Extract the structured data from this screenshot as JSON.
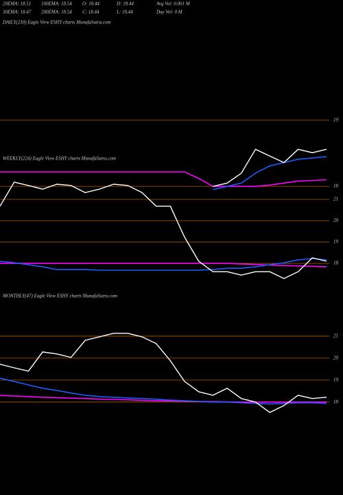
{
  "header": {
    "line1": [
      "20EMA: 18.51",
      "100EMA: 18.54",
      "O: 18.44",
      "H: 18.44",
      "Avg Vol: 0.001 M"
    ],
    "line2": [
      "30EMA: 18.47",
      "200EMA: 18.54",
      "C: 18.44",
      "L: 18.44",
      "Day Vol: 0  M"
    ]
  },
  "chart_data": [
    {
      "type": "line",
      "label": "DAILY(230) Eagle  View  ESHY charts MunafaSutra.com",
      "ylim": [
        17.7,
        20.35
      ],
      "yticks": [
        19,
        18
      ],
      "grid": true,
      "series": [
        {
          "color": "#ff00ff",
          "values": [
            18.22,
            18.22,
            18.22,
            18.22,
            18.22,
            18.22,
            18.22,
            18.22,
            18.22,
            18.22,
            18.22,
            18.22,
            18.22,
            18.22,
            18.12,
            18.0,
            18.0,
            18.0,
            18.0,
            18.02,
            18.05,
            18.08,
            18.09,
            18.1
          ]
        },
        {
          "color": "#1e5cff",
          "values": [
            null,
            null,
            null,
            null,
            null,
            null,
            null,
            null,
            null,
            null,
            null,
            null,
            null,
            null,
            null,
            17.95,
            18.0,
            18.05,
            18.2,
            18.31,
            18.36,
            18.41,
            18.43,
            18.45
          ]
        },
        {
          "color": "#ffffff",
          "values": [
            null,
            null,
            null,
            null,
            null,
            null,
            null,
            null,
            null,
            null,
            null,
            null,
            null,
            null,
            null,
            18.0,
            18.05,
            18.2,
            18.56,
            18.46,
            18.36,
            18.56,
            18.51,
            18.56
          ]
        }
      ]
    },
    {
      "type": "line",
      "label": "WEEKLY(224) Eagle  View  ESHY charts MunafaSutra.com",
      "ylim": [
        16.65,
        23.9
      ],
      "yticks": [
        21,
        20,
        19,
        18
      ],
      "grid": true,
      "series": [
        {
          "color": "#ff00ff",
          "values": [
            18.0,
            18.0,
            18.0,
            18.0,
            18.0,
            18.0,
            18.0,
            18.0,
            18.0,
            18.0,
            18.0,
            18.0,
            18.0,
            18.0,
            18.0,
            18.0,
            18.0,
            17.97,
            17.95,
            17.92,
            17.9,
            17.88,
            17.86,
            17.84
          ]
        },
        {
          "color": "#1e5cff",
          "values": [
            18.1,
            18.03,
            17.94,
            17.84,
            17.71,
            17.71,
            17.71,
            17.68,
            17.68,
            17.68,
            17.68,
            17.68,
            17.68,
            17.68,
            17.68,
            17.71,
            17.77,
            17.77,
            17.84,
            17.94,
            18.03,
            18.16,
            18.23,
            18.16
          ]
        },
        {
          "color": "#ffffff",
          "values": [
            20.68,
            21.81,
            21.65,
            21.48,
            21.71,
            21.65,
            21.32,
            21.48,
            21.71,
            21.65,
            21.32,
            20.68,
            20.68,
            19.23,
            18.1,
            17.61,
            17.61,
            17.45,
            17.61,
            17.61,
            17.29,
            17.61,
            18.26,
            18.1
          ]
        }
      ]
    },
    {
      "type": "line",
      "label": "MONTHLY(47) Eagle  View  ESHY charts MunafaSutra.com",
      "ylim": [
        16.9,
        22.53
      ],
      "yticks": [
        21,
        20,
        19,
        18
      ],
      "grid": true,
      "series": [
        {
          "color": "#ff00ff",
          "values": [
            18.3,
            18.28,
            18.25,
            18.22,
            18.2,
            18.18,
            18.16,
            18.14,
            18.12,
            18.1,
            18.08,
            18.06,
            18.05,
            18.04,
            18.03,
            18.02,
            18.01,
            18.0,
            18.0,
            18.0,
            18.0,
            18.0,
            18.0,
            18.0
          ]
        },
        {
          "color": "#1e5cff",
          "values": [
            19.09,
            18.94,
            18.78,
            18.63,
            18.53,
            18.41,
            18.31,
            18.25,
            18.22,
            18.19,
            18.16,
            18.13,
            18.09,
            18.06,
            18.03,
            18.0,
            18.0,
            17.97,
            17.94,
            17.91,
            17.94,
            17.97,
            17.97,
            17.94
          ]
        },
        {
          "color": "#ffffff",
          "values": [
            19.72,
            19.56,
            19.41,
            20.28,
            20.19,
            20.03,
            20.81,
            20.97,
            21.13,
            21.13,
            20.97,
            20.66,
            19.88,
            18.94,
            18.47,
            18.31,
            18.63,
            18.16,
            18.0,
            17.53,
            17.84,
            18.31,
            18.16,
            18.22
          ]
        }
      ]
    }
  ]
}
